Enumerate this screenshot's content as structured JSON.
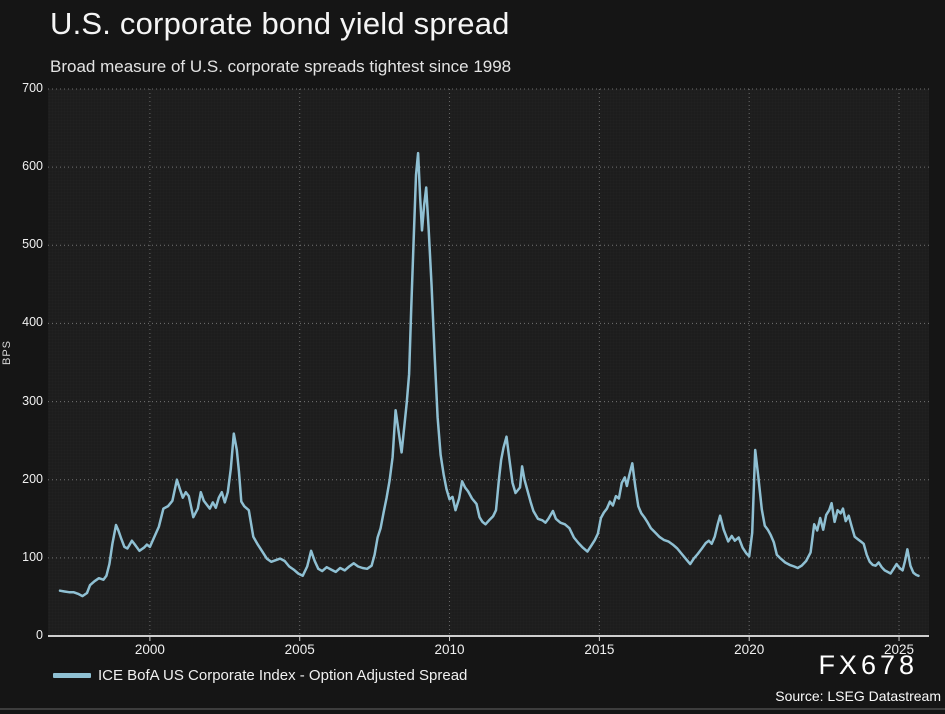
{
  "header": {
    "title": "U.S. corporate bond yield spread",
    "subtitle": "Broad measure of U.S. corporate spreads tightest since 1998"
  },
  "legend": {
    "label": "ICE BofA US Corporate Index - Option Adjusted Spread"
  },
  "watermark": "FX678",
  "source": "Source: LSEG Datastream",
  "colors": {
    "background": "#151515",
    "plot_background": "#1d1d1d",
    "line": "#8fc0d3",
    "axis": "#cfcfcf",
    "grid": "#c8c8c8",
    "text": "#f0f0f0"
  },
  "chart_data": {
    "type": "line",
    "title": "U.S. corporate bond yield spread",
    "subtitle": "Broad measure of U.S. corporate spreads tightest since 1998",
    "xlabel": "",
    "ylabel": "BPS",
    "ylim": [
      0,
      700
    ],
    "xlim": [
      1996.6,
      2026.0
    ],
    "yticks": [
      0,
      100,
      200,
      300,
      400,
      500,
      600,
      700
    ],
    "xticks": [
      2000,
      2005,
      2010,
      2015,
      2020,
      2025
    ],
    "grid": "dotted",
    "legend_position": "bottom-left",
    "series": [
      {
        "name": "ICE BofA US Corporate Index - Option Adjusted Spread",
        "color": "#8fc0d3",
        "points": [
          [
            1997.0,
            58
          ],
          [
            1997.15,
            57
          ],
          [
            1997.3,
            56
          ],
          [
            1997.45,
            56
          ],
          [
            1997.6,
            54
          ],
          [
            1997.75,
            51
          ],
          [
            1997.9,
            55
          ],
          [
            1998.0,
            65
          ],
          [
            1998.15,
            70
          ],
          [
            1998.3,
            74
          ],
          [
            1998.45,
            72
          ],
          [
            1998.55,
            77
          ],
          [
            1998.65,
            92
          ],
          [
            1998.75,
            118
          ],
          [
            1998.87,
            142
          ],
          [
            1998.95,
            135
          ],
          [
            1999.05,
            124
          ],
          [
            1999.15,
            114
          ],
          [
            1999.25,
            112
          ],
          [
            1999.4,
            122
          ],
          [
            1999.5,
            117
          ],
          [
            1999.65,
            109
          ],
          [
            1999.8,
            113
          ],
          [
            1999.9,
            117
          ],
          [
            2000.0,
            114
          ],
          [
            2000.15,
            127
          ],
          [
            2000.3,
            140
          ],
          [
            2000.45,
            163
          ],
          [
            2000.6,
            166
          ],
          [
            2000.75,
            173
          ],
          [
            2000.9,
            200
          ],
          [
            2001.0,
            188
          ],
          [
            2001.1,
            177
          ],
          [
            2001.2,
            184
          ],
          [
            2001.3,
            179
          ],
          [
            2001.45,
            152
          ],
          [
            2001.6,
            163
          ],
          [
            2001.7,
            184
          ],
          [
            2001.8,
            173
          ],
          [
            2001.9,
            168
          ],
          [
            2002.0,
            163
          ],
          [
            2002.1,
            171
          ],
          [
            2002.2,
            164
          ],
          [
            2002.3,
            177
          ],
          [
            2002.4,
            184
          ],
          [
            2002.5,
            171
          ],
          [
            2002.6,
            184
          ],
          [
            2002.7,
            214
          ],
          [
            2002.8,
            259
          ],
          [
            2002.9,
            238
          ],
          [
            2002.97,
            211
          ],
          [
            2003.05,
            172
          ],
          [
            2003.15,
            166
          ],
          [
            2003.3,
            161
          ],
          [
            2003.45,
            127
          ],
          [
            2003.6,
            117
          ],
          [
            2003.75,
            108
          ],
          [
            2003.9,
            99
          ],
          [
            2004.05,
            95
          ],
          [
            2004.2,
            97
          ],
          [
            2004.35,
            99
          ],
          [
            2004.5,
            96
          ],
          [
            2004.65,
            89
          ],
          [
            2004.8,
            85
          ],
          [
            2004.95,
            80
          ],
          [
            2005.1,
            77
          ],
          [
            2005.25,
            89
          ],
          [
            2005.38,
            109
          ],
          [
            2005.5,
            96
          ],
          [
            2005.62,
            86
          ],
          [
            2005.75,
            83
          ],
          [
            2005.9,
            88
          ],
          [
            2006.05,
            85
          ],
          [
            2006.2,
            82
          ],
          [
            2006.35,
            87
          ],
          [
            2006.5,
            84
          ],
          [
            2006.65,
            89
          ],
          [
            2006.8,
            93
          ],
          [
            2006.95,
            89
          ],
          [
            2007.1,
            87
          ],
          [
            2007.25,
            86
          ],
          [
            2007.4,
            90
          ],
          [
            2007.5,
            104
          ],
          [
            2007.6,
            126
          ],
          [
            2007.7,
            138
          ],
          [
            2007.8,
            158
          ],
          [
            2007.9,
            177
          ],
          [
            2008.0,
            199
          ],
          [
            2008.1,
            229
          ],
          [
            2008.2,
            289
          ],
          [
            2008.3,
            262
          ],
          [
            2008.4,
            235
          ],
          [
            2008.5,
            272
          ],
          [
            2008.57,
            298
          ],
          [
            2008.65,
            335
          ],
          [
            2008.72,
            418
          ],
          [
            2008.8,
            505
          ],
          [
            2008.88,
            590
          ],
          [
            2008.95,
            618
          ],
          [
            2009.02,
            560
          ],
          [
            2009.08,
            519
          ],
          [
            2009.15,
            551
          ],
          [
            2009.22,
            574
          ],
          [
            2009.3,
            522
          ],
          [
            2009.4,
            448
          ],
          [
            2009.5,
            360
          ],
          [
            2009.6,
            280
          ],
          [
            2009.7,
            232
          ],
          [
            2009.8,
            207
          ],
          [
            2009.9,
            188
          ],
          [
            2010.0,
            175
          ],
          [
            2010.1,
            178
          ],
          [
            2010.2,
            161
          ],
          [
            2010.32,
            176
          ],
          [
            2010.42,
            198
          ],
          [
            2010.52,
            190
          ],
          [
            2010.62,
            185
          ],
          [
            2010.75,
            176
          ],
          [
            2010.9,
            169
          ],
          [
            2011.0,
            152
          ],
          [
            2011.1,
            146
          ],
          [
            2011.2,
            143
          ],
          [
            2011.32,
            148
          ],
          [
            2011.45,
            153
          ],
          [
            2011.55,
            161
          ],
          [
            2011.65,
            201
          ],
          [
            2011.72,
            225
          ],
          [
            2011.8,
            241
          ],
          [
            2011.9,
            255
          ],
          [
            2012.0,
            225
          ],
          [
            2012.1,
            196
          ],
          [
            2012.2,
            183
          ],
          [
            2012.35,
            190
          ],
          [
            2012.42,
            217
          ],
          [
            2012.5,
            200
          ],
          [
            2012.6,
            186
          ],
          [
            2012.7,
            172
          ],
          [
            2012.8,
            160
          ],
          [
            2012.95,
            150
          ],
          [
            2013.1,
            148
          ],
          [
            2013.2,
            145
          ],
          [
            2013.3,
            150
          ],
          [
            2013.45,
            160
          ],
          [
            2013.55,
            150
          ],
          [
            2013.7,
            145
          ],
          [
            2013.85,
            143
          ],
          [
            2014.0,
            138
          ],
          [
            2014.15,
            126
          ],
          [
            2014.3,
            119
          ],
          [
            2014.45,
            113
          ],
          [
            2014.6,
            108
          ],
          [
            2014.72,
            115
          ],
          [
            2014.85,
            123
          ],
          [
            2014.95,
            131
          ],
          [
            2015.05,
            151
          ],
          [
            2015.15,
            158
          ],
          [
            2015.25,
            163
          ],
          [
            2015.35,
            172
          ],
          [
            2015.45,
            167
          ],
          [
            2015.55,
            179
          ],
          [
            2015.65,
            176
          ],
          [
            2015.75,
            196
          ],
          [
            2015.85,
            203
          ],
          [
            2015.92,
            192
          ],
          [
            2016.0,
            206
          ],
          [
            2016.1,
            221
          ],
          [
            2016.2,
            191
          ],
          [
            2016.3,
            166
          ],
          [
            2016.4,
            157
          ],
          [
            2016.5,
            152
          ],
          [
            2016.6,
            146
          ],
          [
            2016.72,
            138
          ],
          [
            2016.85,
            133
          ],
          [
            2017.0,
            127
          ],
          [
            2017.15,
            123
          ],
          [
            2017.3,
            121
          ],
          [
            2017.45,
            117
          ],
          [
            2017.6,
            112
          ],
          [
            2017.75,
            105
          ],
          [
            2017.9,
            98
          ],
          [
            2018.03,
            92
          ],
          [
            2018.15,
            99
          ],
          [
            2018.28,
            105
          ],
          [
            2018.4,
            111
          ],
          [
            2018.55,
            119
          ],
          [
            2018.65,
            122
          ],
          [
            2018.75,
            118
          ],
          [
            2018.85,
            127
          ],
          [
            2018.95,
            143
          ],
          [
            2019.03,
            154
          ],
          [
            2019.15,
            136
          ],
          [
            2019.3,
            121
          ],
          [
            2019.42,
            128
          ],
          [
            2019.52,
            122
          ],
          [
            2019.65,
            126
          ],
          [
            2019.78,
            113
          ],
          [
            2019.9,
            106
          ],
          [
            2020.0,
            102
          ],
          [
            2020.1,
            132
          ],
          [
            2020.2,
            238
          ],
          [
            2020.3,
            205
          ],
          [
            2020.42,
            162
          ],
          [
            2020.52,
            141
          ],
          [
            2020.62,
            136
          ],
          [
            2020.72,
            129
          ],
          [
            2020.82,
            120
          ],
          [
            2020.92,
            104
          ],
          [
            2021.05,
            99
          ],
          [
            2021.2,
            94
          ],
          [
            2021.35,
            91
          ],
          [
            2021.5,
            89
          ],
          [
            2021.62,
            87
          ],
          [
            2021.75,
            90
          ],
          [
            2021.9,
            96
          ],
          [
            2022.05,
            107
          ],
          [
            2022.17,
            143
          ],
          [
            2022.27,
            135
          ],
          [
            2022.37,
            151
          ],
          [
            2022.47,
            136
          ],
          [
            2022.57,
            155
          ],
          [
            2022.67,
            161
          ],
          [
            2022.75,
            170
          ],
          [
            2022.85,
            146
          ],
          [
            2022.95,
            161
          ],
          [
            2023.05,
            157
          ],
          [
            2023.13,
            163
          ],
          [
            2023.22,
            147
          ],
          [
            2023.32,
            154
          ],
          [
            2023.42,
            140
          ],
          [
            2023.52,
            127
          ],
          [
            2023.62,
            124
          ],
          [
            2023.72,
            121
          ],
          [
            2023.82,
            118
          ],
          [
            2023.92,
            104
          ],
          [
            2024.02,
            95
          ],
          [
            2024.12,
            91
          ],
          [
            2024.22,
            90
          ],
          [
            2024.32,
            94
          ],
          [
            2024.42,
            88
          ],
          [
            2024.52,
            84
          ],
          [
            2024.62,
            82
          ],
          [
            2024.72,
            80
          ],
          [
            2024.82,
            86
          ],
          [
            2024.92,
            92
          ],
          [
            2025.02,
            87
          ],
          [
            2025.12,
            84
          ],
          [
            2025.2,
            96
          ],
          [
            2025.28,
            111
          ],
          [
            2025.38,
            90
          ],
          [
            2025.48,
            81
          ],
          [
            2025.58,
            78
          ],
          [
            2025.65,
            77
          ]
        ]
      }
    ]
  }
}
